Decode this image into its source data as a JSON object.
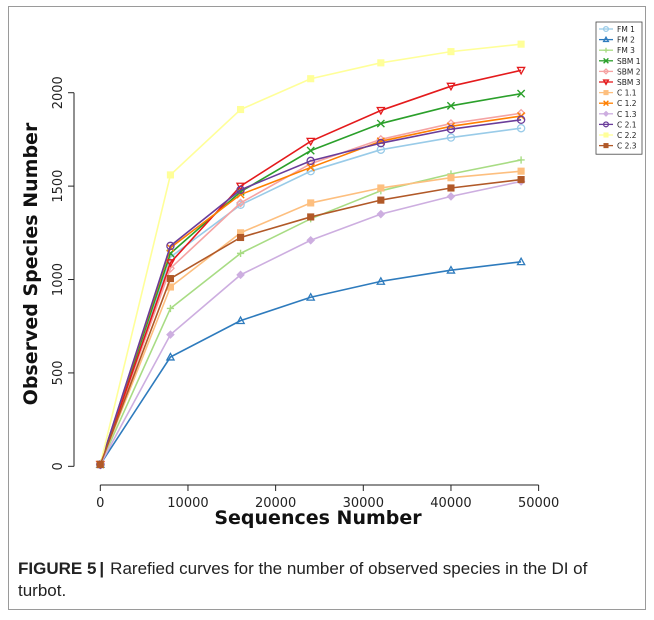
{
  "chart_data": {
    "type": "line",
    "xlabel": "Sequences Number",
    "ylabel": "Observed Species Number",
    "xlim": [
      -3000,
      57000
    ],
    "ylim": [
      -100,
      2400
    ],
    "xticks": [
      0,
      10000,
      20000,
      30000,
      40000,
      50000
    ],
    "yticks": [
      0,
      500,
      1000,
      1500,
      2000
    ],
    "x": [
      0,
      8000,
      16000,
      24000,
      32000,
      40000,
      48000
    ],
    "legend_position": "top-right",
    "grid": false,
    "series": [
      {
        "name": "FM 1",
        "color": "#99cbe8",
        "marker": "circle",
        "values": [
          10,
          1120,
          1400,
          1580,
          1695,
          1760,
          1810
        ]
      },
      {
        "name": "FM 2",
        "color": "#2e7bbd",
        "marker": "triangle",
        "values": [
          10,
          585,
          780,
          905,
          990,
          1050,
          1095
        ]
      },
      {
        "name": "FM 3",
        "color": "#a8dc84",
        "marker": "plus",
        "values": [
          10,
          845,
          1140,
          1325,
          1475,
          1565,
          1640
        ]
      },
      {
        "name": "SBM 1",
        "color": "#2ba02b",
        "marker": "x",
        "values": [
          10,
          1140,
          1470,
          1690,
          1835,
          1930,
          1995
        ]
      },
      {
        "name": "SBM 2",
        "color": "#f5a3a3",
        "marker": "diamond-open",
        "values": [
          10,
          1060,
          1410,
          1620,
          1750,
          1835,
          1890
        ]
      },
      {
        "name": "SBM 3",
        "color": "#e41a1c",
        "marker": "triangle-down",
        "values": [
          10,
          1090,
          1500,
          1740,
          1905,
          2035,
          2120
        ]
      },
      {
        "name": "C 1.1",
        "color": "#fdbf7f",
        "marker": "square",
        "values": [
          10,
          960,
          1250,
          1410,
          1490,
          1545,
          1580
        ]
      },
      {
        "name": "C 1.2",
        "color": "#ff7f00",
        "marker": "x",
        "values": [
          10,
          1170,
          1455,
          1600,
          1740,
          1820,
          1875
        ]
      },
      {
        "name": "C 1.3",
        "color": "#cdaee0",
        "marker": "diamond",
        "values": [
          10,
          705,
          1025,
          1210,
          1350,
          1445,
          1525
        ]
      },
      {
        "name": "C 2.1",
        "color": "#6a3d9a",
        "marker": "circle",
        "values": [
          10,
          1180,
          1480,
          1635,
          1730,
          1805,
          1855
        ]
      },
      {
        "name": "C 2.2",
        "color": "#ffff99",
        "marker": "square",
        "values": [
          10,
          1560,
          1910,
          2075,
          2160,
          2220,
          2260
        ]
      },
      {
        "name": "C 2.3",
        "color": "#b15928",
        "marker": "square",
        "values": [
          10,
          1005,
          1225,
          1335,
          1425,
          1490,
          1535
        ]
      }
    ]
  },
  "caption": {
    "label": "FIGURE 5",
    "separator": "|",
    "text": "Rarefied curves for the number of observed species in the DI of turbot."
  }
}
